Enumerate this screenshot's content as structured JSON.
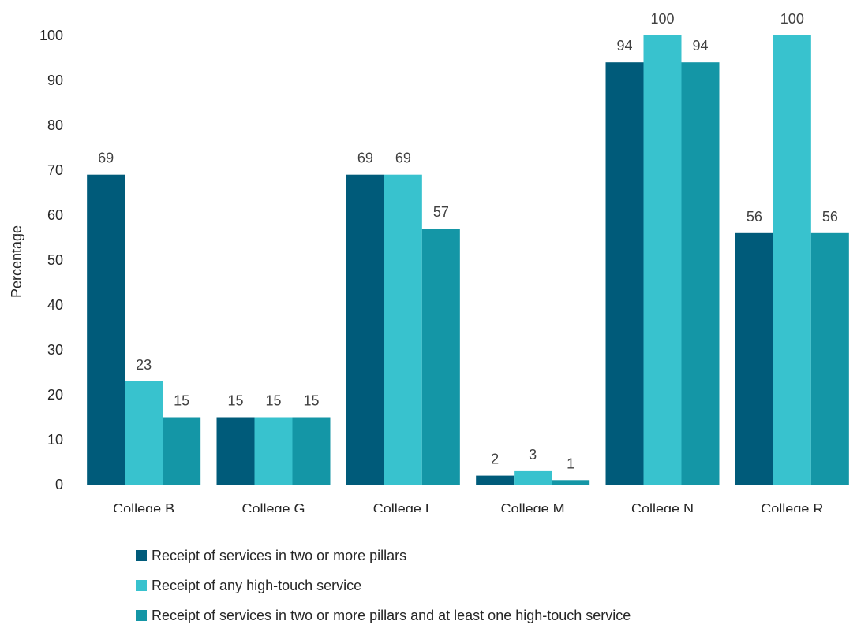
{
  "chart_data": {
    "type": "bar",
    "title": "",
    "xlabel": "",
    "ylabel": "Percentage",
    "ylim": [
      0,
      100
    ],
    "yticks": [
      0,
      10,
      20,
      30,
      40,
      50,
      60,
      70,
      80,
      90,
      100
    ],
    "categories": [
      "College B",
      "College G",
      "College L",
      "College M",
      "College N",
      "College R"
    ],
    "series": [
      {
        "name": "Receipt of services in two or more pillars",
        "color": "#005B7A",
        "values": [
          69,
          15,
          69,
          2,
          94,
          56
        ]
      },
      {
        "name": "Receipt of any high-touch service",
        "color": "#38C2CE",
        "values": [
          23,
          15,
          69,
          3,
          100,
          100
        ]
      },
      {
        "name": "Receipt of services in two or more pillars and at least one high-touch service",
        "color": "#1496A6",
        "values": [
          15,
          15,
          57,
          1,
          94,
          56
        ]
      }
    ],
    "data_labels": [
      [
        "69",
        "15",
        "69",
        "2",
        "94",
        "56"
      ],
      [
        "23",
        "15",
        "69",
        "3",
        "100",
        "100"
      ],
      [
        "15",
        "15",
        "57",
        "1",
        "94",
        "56"
      ]
    ],
    "grid": false,
    "legend_position": "bottom"
  }
}
